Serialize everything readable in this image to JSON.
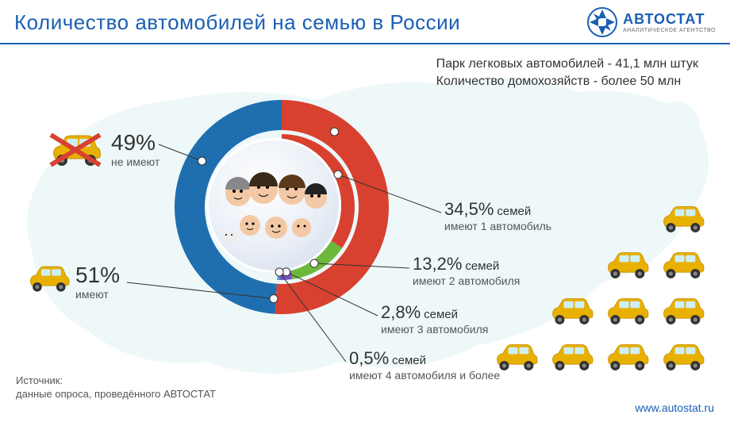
{
  "header": {
    "title": "Количество автомобилей на семью в России",
    "logo_name": "АВТОСТАТ",
    "logo_sub": "АНАЛИТИЧЕСКОЕ АГЕНТСТВО"
  },
  "top_stats": {
    "line1": "Парк легковых автомобилей - 41,1 млн штук",
    "line2": "Количество домохозяйств - более 50 млн"
  },
  "colors": {
    "brand": "#1a5fb4",
    "outer_no": "#1f6fb0",
    "outer_yes": "#d8412f",
    "inner_1": "#d8412f",
    "inner_2": "#6cb83c",
    "inner_3": "#7b4fc9",
    "inner_4": "#39b5c6",
    "map": "#bfe4e7",
    "car": "#e8b000",
    "car_dark": "#c98f00"
  },
  "outer_ring": {
    "type": "donut",
    "radius_outer": 135,
    "radius_inner": 97,
    "segments": [
      {
        "key": "no",
        "pct": 49,
        "color": "#1f6fb0",
        "label_pct": "49%",
        "label_txt": "не имеют"
      },
      {
        "key": "yes",
        "pct": 51,
        "color": "#d8412f",
        "label_pct": "51%",
        "label_txt": "имеют"
      }
    ]
  },
  "inner_ring": {
    "type": "donut",
    "radius_outer": 92,
    "radius_inner": 70,
    "segments": [
      {
        "key": "c1",
        "pct": 34.5,
        "of51": 67.6,
        "color": "#d8412f",
        "p": "34,5%",
        "f": "семей",
        "d": "имеют 1 автомобиль",
        "cars": 1
      },
      {
        "key": "c2",
        "pct": 13.2,
        "of51": 25.9,
        "color": "#6cb83c",
        "p": "13,2%",
        "f": "семей",
        "d": "имеют 2 автомобиля",
        "cars": 2
      },
      {
        "key": "c3",
        "pct": 2.8,
        "of51": 5.5,
        "color": "#7b4fc9",
        "p": "2,8%",
        "f": "семей",
        "d": "имеют 3 автомобиля",
        "cars": 3
      },
      {
        "key": "c4",
        "pct": 0.5,
        "of51": 1.0,
        "color": "#39b5c6",
        "p": "0,5%",
        "f": "семей",
        "d": "имеют 4 автомобиля и более",
        "cars": 4
      }
    ]
  },
  "source": {
    "l1": "Источник:",
    "l2": "данные опроса, проведённого АВТОСТАТ"
  },
  "url": "www.autostat.ru"
}
